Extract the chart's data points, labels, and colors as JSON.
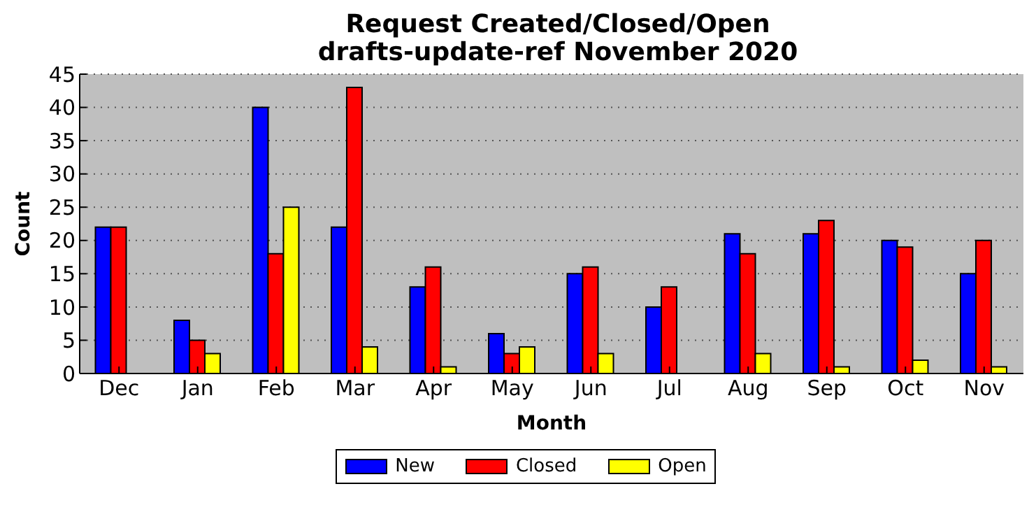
{
  "chart_data": {
    "type": "bar",
    "title": "Request Created/Closed/Open",
    "subtitle": "drafts-update-ref November 2020",
    "xlabel": "Month",
    "ylabel": "Count",
    "categories": [
      "Dec",
      "Jan",
      "Feb",
      "Mar",
      "Apr",
      "May",
      "Jun",
      "Jul",
      "Aug",
      "Sep",
      "Oct",
      "Nov"
    ],
    "series": [
      {
        "name": "New",
        "color": "#0000ff",
        "values": [
          22,
          8,
          40,
          22,
          13,
          6,
          15,
          10,
          21,
          21,
          20,
          15
        ]
      },
      {
        "name": "Closed",
        "color": "#ff0000",
        "values": [
          22,
          5,
          18,
          43,
          16,
          3,
          16,
          13,
          18,
          23,
          19,
          20
        ]
      },
      {
        "name": "Open",
        "color": "#ffff00",
        "values": [
          0,
          3,
          25,
          4,
          1,
          4,
          3,
          0,
          3,
          1,
          2,
          1
        ]
      }
    ],
    "ylim": [
      0,
      45
    ],
    "yticks": [
      0,
      5,
      10,
      15,
      20,
      25,
      30,
      35,
      40,
      45
    ],
    "grid": "y",
    "legend": "bottom"
  }
}
